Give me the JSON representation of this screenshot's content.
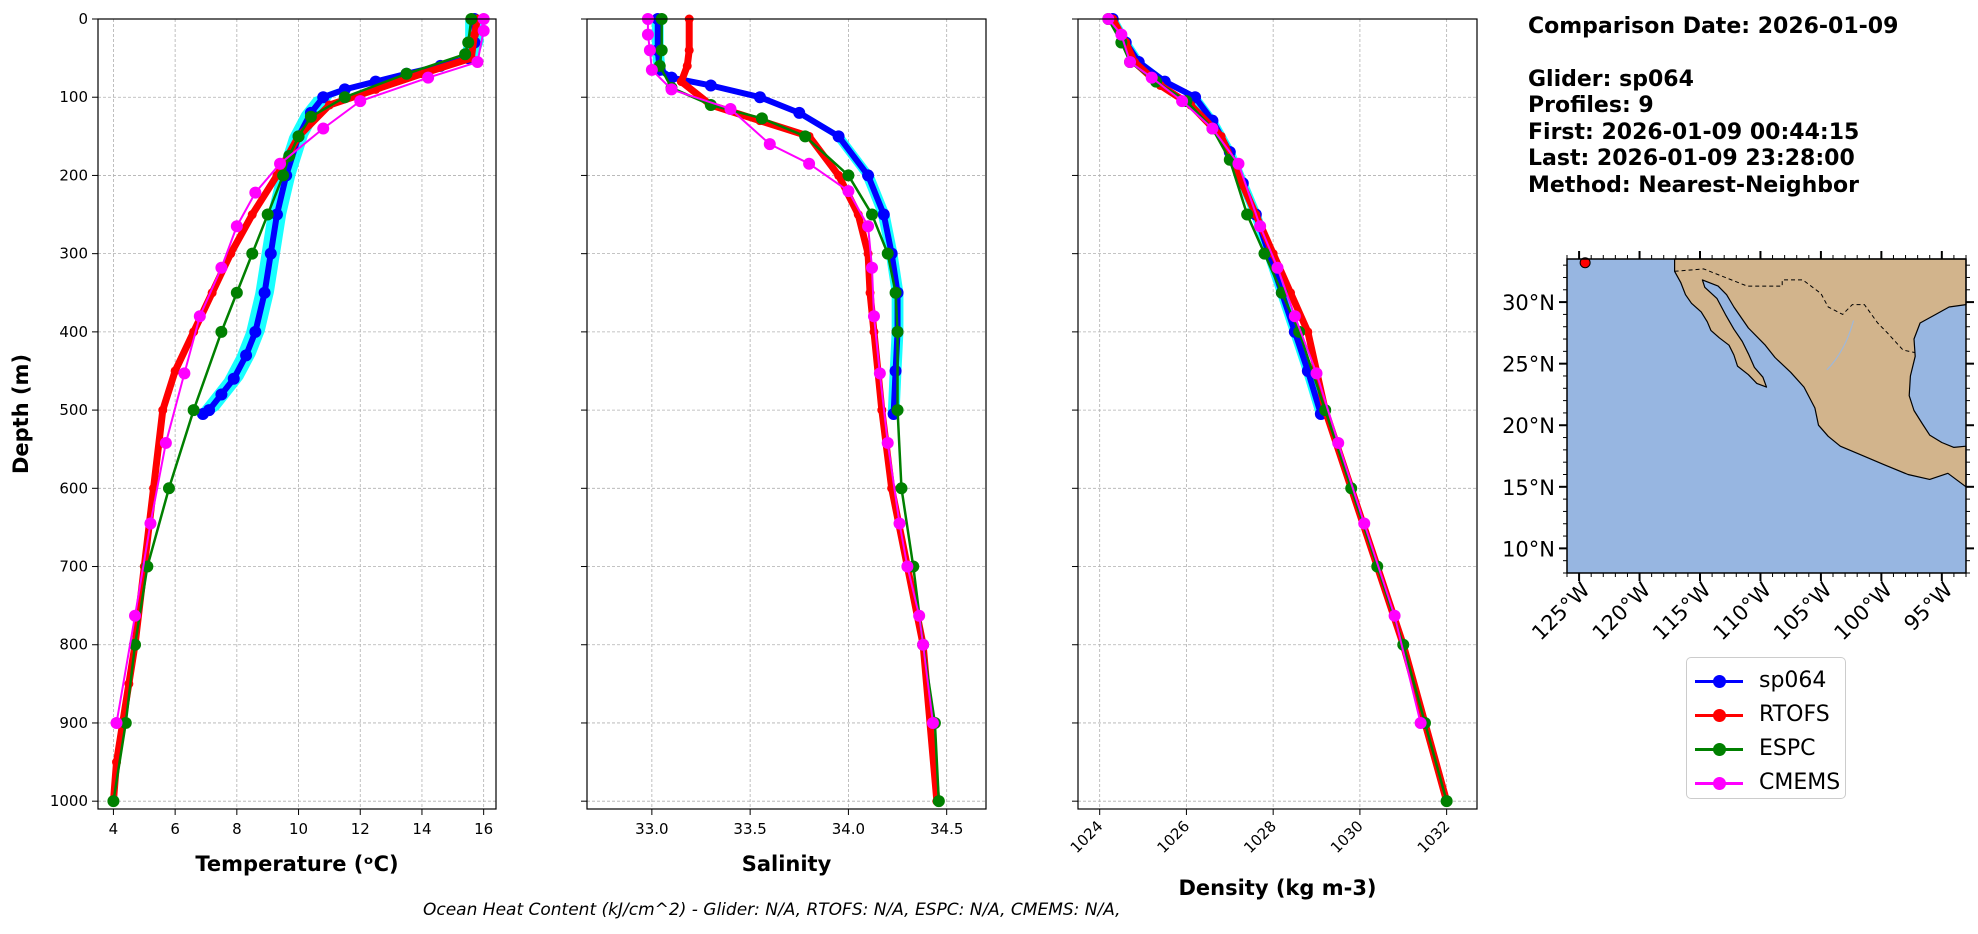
{
  "info": {
    "comparison": "Comparison Date: 2026-01-09",
    "glider": "Glider: sp064",
    "profiles": "Profiles: 9",
    "first": "First: 2026-01-09 00:44:15",
    "last": "Last: 2026-01-09 23:28:00",
    "method": "Method: Nearest-Neighbor"
  },
  "footer": "Ocean Heat Content (kJ/cm^2) - Glider: N/A,  RTOFS: N/A,  ESPC: N/A,  CMEMS: N/A,",
  "colors": {
    "sp064": "#0000ff",
    "sp064_spread": "#00ffff",
    "RTOFS": "#ff0000",
    "ESPC": "#008000",
    "CMEMS": "#ff00ff",
    "ocean": "#97b6e1",
    "land": "#d2b48c"
  },
  "map": {
    "lat_ticks": [
      "30°N",
      "25°N",
      "20°N",
      "15°N",
      "10°N"
    ],
    "lon_ticks": [
      "125°W",
      "120°W",
      "115°W",
      "110°W",
      "105°W",
      "100°W",
      "95°W"
    ],
    "marker": {
      "lon": -124.5,
      "lat": 33.2
    }
  },
  "chart_data": [
    {
      "type": "line",
      "xlabel": "Temperature (ᵒC)",
      "ylabel": "Depth (m)",
      "xlim": [
        3.5,
        16.4
      ],
      "ylim": [
        1010,
        0
      ],
      "xticks": [
        4,
        6,
        8,
        10,
        12,
        14,
        16
      ],
      "yticks": [
        0,
        100,
        200,
        300,
        400,
        500,
        600,
        700,
        800,
        900,
        1000
      ],
      "grid": true,
      "series": [
        {
          "name": "sp064",
          "x": [
            15.7,
            15.7,
            15.5,
            14.6,
            13.5,
            12.5,
            11.5,
            10.8,
            10.4,
            10.0,
            9.6,
            9.3,
            9.1,
            8.9,
            8.6,
            8.3,
            7.9,
            7.5,
            7.1,
            6.9
          ],
          "y": [
            0,
            30,
            50,
            60,
            70,
            80,
            90,
            100,
            120,
            150,
            200,
            250,
            300,
            350,
            400,
            430,
            460,
            480,
            500,
            505
          ]
        },
        {
          "name": "RTOFS",
          "x": [
            15.8,
            15.7,
            15.6,
            14.0,
            12.5,
            11.0,
            10.0,
            9.3,
            8.5,
            7.8,
            7.2,
            6.6,
            6.0,
            5.6,
            5.3,
            5.0,
            4.7,
            4.5,
            4.3,
            4.1,
            4.0
          ],
          "y": [
            0,
            20,
            50,
            70,
            90,
            110,
            150,
            200,
            250,
            300,
            350,
            400,
            450,
            500,
            600,
            700,
            800,
            850,
            900,
            950,
            1000
          ]
        },
        {
          "name": "ESPC",
          "x": [
            15.6,
            15.5,
            15.4,
            13.5,
            11.5,
            10.4,
            10.0,
            9.7,
            9.5,
            9.0,
            8.5,
            8.0,
            7.5,
            6.6,
            5.8,
            5.1,
            4.7,
            4.4,
            4.0
          ],
          "y": [
            0,
            30,
            45,
            70,
            100,
            125,
            150,
            175,
            200,
            250,
            300,
            350,
            400,
            500,
            600,
            700,
            800,
            900,
            1000
          ]
        },
        {
          "name": "CMEMS",
          "x": [
            16.0,
            16.0,
            15.8,
            14.2,
            12.0,
            10.8,
            9.4,
            8.6,
            8.0,
            7.5,
            6.8,
            6.3,
            5.7,
            5.2,
            4.7,
            4.1
          ],
          "y": [
            0,
            15,
            55,
            75,
            105,
            140,
            185,
            222,
            265,
            318,
            380,
            453,
            542,
            645,
            763,
            900
          ]
        }
      ]
    },
    {
      "type": "line",
      "xlabel": "Salinity",
      "ylabel": "",
      "xlim": [
        32.67,
        34.7
      ],
      "ylim": [
        1010,
        0
      ],
      "xticks": [
        33.0,
        33.5,
        34.0,
        34.5
      ],
      "yticks": [
        0,
        100,
        200,
        300,
        400,
        500,
        600,
        700,
        800,
        900,
        1000
      ],
      "grid": true,
      "series": [
        {
          "name": "sp064",
          "x": [
            33.03,
            33.03,
            33.04,
            33.1,
            33.3,
            33.55,
            33.75,
            33.95,
            34.1,
            34.18,
            34.22,
            34.25,
            34.25,
            34.24,
            34.23
          ],
          "y": [
            0,
            40,
            65,
            75,
            85,
            100,
            120,
            150,
            200,
            250,
            300,
            350,
            400,
            450,
            505
          ]
        },
        {
          "name": "RTOFS",
          "x": [
            33.19,
            33.19,
            33.18,
            33.15,
            33.3,
            33.55,
            33.8,
            33.95,
            34.05,
            34.1,
            34.11,
            34.13,
            34.17,
            34.22,
            34.3,
            34.38,
            34.45
          ],
          "y": [
            0,
            40,
            60,
            80,
            110,
            130,
            150,
            200,
            250,
            300,
            350,
            400,
            500,
            600,
            700,
            800,
            1000
          ]
        },
        {
          "name": "ESPC",
          "x": [
            33.05,
            33.05,
            33.04,
            33.1,
            33.3,
            33.56,
            33.78,
            34.0,
            34.12,
            34.2,
            34.24,
            34.25,
            34.25,
            34.27,
            34.33,
            34.38,
            34.44,
            34.46
          ],
          "y": [
            0,
            40,
            60,
            88,
            110,
            127,
            150,
            200,
            250,
            300,
            350,
            400,
            500,
            600,
            700,
            800,
            900,
            1000
          ]
        },
        {
          "name": "CMEMS",
          "x": [
            32.98,
            32.98,
            32.99,
            33.0,
            33.1,
            33.4,
            33.6,
            33.8,
            34.0,
            34.1,
            34.12,
            34.13,
            34.16,
            34.2,
            34.26,
            34.3,
            34.36,
            34.38,
            34.43
          ],
          "y": [
            0,
            20,
            40,
            65,
            90,
            115,
            160,
            185,
            220,
            265,
            318,
            380,
            453,
            542,
            645,
            700,
            763,
            800,
            900
          ]
        }
      ]
    },
    {
      "type": "line",
      "xlabel": "Density (kg m-3)",
      "ylabel": "",
      "xlim": [
        1023.5,
        1032.7
      ],
      "ylim": [
        1010,
        0
      ],
      "xticks": [
        1024,
        1026,
        1028,
        1030,
        1032
      ],
      "yticks": [
        0,
        100,
        200,
        300,
        400,
        500,
        600,
        700,
        800,
        900,
        1000
      ],
      "grid": true,
      "series": [
        {
          "name": "sp064",
          "x": [
            1024.3,
            1024.6,
            1024.9,
            1025.5,
            1026.2,
            1026.6,
            1027.0,
            1027.3,
            1027.6,
            1027.9,
            1028.2,
            1028.5,
            1028.8,
            1029.1
          ],
          "y": [
            0,
            30,
            55,
            80,
            100,
            130,
            170,
            210,
            250,
            300,
            350,
            400,
            450,
            505
          ]
        },
        {
          "name": "RTOFS",
          "x": [
            1024.3,
            1024.6,
            1024.8,
            1025.4,
            1026.1,
            1026.8,
            1027.2,
            1027.6,
            1028.0,
            1028.4,
            1028.8,
            1029.2,
            1029.8,
            1030.4,
            1031.0,
            1031.5,
            1032.0
          ],
          "y": [
            0,
            30,
            55,
            85,
            110,
            150,
            200,
            250,
            300,
            350,
            400,
            500,
            600,
            700,
            800,
            900,
            1000
          ]
        },
        {
          "name": "ESPC",
          "x": [
            1024.2,
            1024.5,
            1024.7,
            1025.3,
            1026.0,
            1026.6,
            1027.0,
            1027.4,
            1027.8,
            1028.2,
            1028.6,
            1029.2,
            1029.8,
            1030.4,
            1031.0,
            1031.5,
            1032.0
          ],
          "y": [
            0,
            30,
            55,
            80,
            105,
            140,
            180,
            250,
            300,
            350,
            400,
            500,
            600,
            700,
            800,
            900,
            1000
          ]
        },
        {
          "name": "CMEMS",
          "x": [
            1024.2,
            1024.5,
            1024.7,
            1025.2,
            1025.9,
            1026.6,
            1027.2,
            1027.7,
            1028.1,
            1028.5,
            1029.0,
            1029.5,
            1030.1,
            1030.8,
            1031.4
          ],
          "y": [
            0,
            20,
            55,
            75,
            105,
            140,
            185,
            265,
            318,
            380,
            453,
            542,
            645,
            763,
            900
          ]
        }
      ]
    }
  ]
}
